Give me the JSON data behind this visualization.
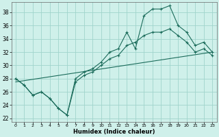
{
  "xlabel": "Humidex (Indice chaleur)",
  "bg_color": "#cff0ea",
  "grid_color": "#a0d4cc",
  "line_color": "#1a6b5a",
  "xlim": [
    -0.5,
    23.5
  ],
  "ylim": [
    21.5,
    39.5
  ],
  "yticks": [
    22,
    24,
    26,
    28,
    30,
    32,
    34,
    36,
    38
  ],
  "xticks": [
    0,
    1,
    2,
    3,
    4,
    5,
    6,
    7,
    8,
    9,
    10,
    11,
    12,
    13,
    14,
    15,
    16,
    17,
    18,
    19,
    20,
    21,
    22,
    23
  ],
  "series1_x": [
    0,
    1,
    2,
    3,
    4,
    5,
    6,
    7,
    8,
    9,
    10,
    11,
    12,
    13,
    14,
    15,
    16,
    17,
    18,
    19,
    20,
    21,
    22,
    23
  ],
  "series1_y": [
    28,
    27,
    25.5,
    26,
    25,
    23.5,
    22.5,
    28,
    29,
    29.5,
    30.5,
    32,
    32.5,
    35,
    32.5,
    37.5,
    38.5,
    38.5,
    39,
    36,
    35,
    33,
    33.5,
    32
  ],
  "series2_x": [
    0,
    1,
    2,
    3,
    4,
    5,
    6,
    7,
    8,
    9,
    10,
    11,
    12,
    13,
    14,
    15,
    16,
    17,
    18,
    19,
    20,
    21,
    22,
    23
  ],
  "series2_y": [
    28,
    27,
    25.5,
    26,
    25,
    23.5,
    22.5,
    27.5,
    28.5,
    29,
    30,
    31,
    31.5,
    33,
    33.5,
    34.5,
    35,
    35,
    35.5,
    34.5,
    33.5,
    32,
    32.5,
    31.5
  ],
  "series3_x": [
    0,
    23
  ],
  "series3_y": [
    27.5,
    32.0
  ]
}
